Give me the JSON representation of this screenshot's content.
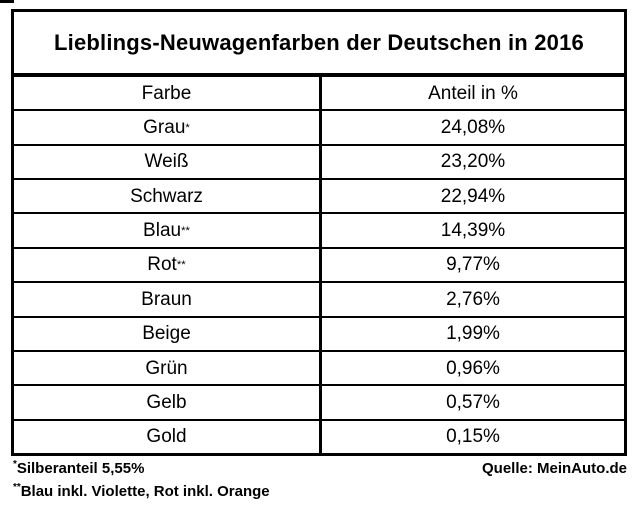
{
  "table": {
    "title": "Lieblings-Neuwagenfarben der Deutschen in 2016",
    "columns": [
      "Farbe",
      "Anteil in %"
    ],
    "rows": [
      {
        "color": "Grau",
        "marker": "*",
        "share": "24,08%"
      },
      {
        "color": "Weiß",
        "marker": "",
        "share": "23,20%"
      },
      {
        "color": "Schwarz",
        "marker": "",
        "share": "22,94%"
      },
      {
        "color": "Blau",
        "marker": "**",
        "share": "14,39%"
      },
      {
        "color": "Rot",
        "marker": "**",
        "share": "9,77%"
      },
      {
        "color": "Braun",
        "marker": "",
        "share": "2,76%"
      },
      {
        "color": "Beige",
        "marker": "",
        "share": "1,99%"
      },
      {
        "color": "Grün",
        "marker": "",
        "share": "0,96%"
      },
      {
        "color": "Gelb",
        "marker": "",
        "share": "0,57%"
      },
      {
        "color": "Gold",
        "marker": "",
        "share": "0,15%"
      }
    ]
  },
  "footnotes": {
    "note1_marker": "*",
    "note1_text": "Silberanteil 5,55%",
    "note2_marker": "**",
    "note2_text": "Blau inkl. Violette, Rot inkl. Orange",
    "source": "Quelle: MeinAuto.de"
  },
  "colors": {
    "border": "#000000",
    "text": "#000000",
    "background": "#ffffff"
  },
  "chart_data": {
    "type": "table",
    "title": "Lieblings-Neuwagenfarben der Deutschen in 2016",
    "columns": [
      "Farbe",
      "Anteil in %"
    ],
    "categories": [
      "Grau",
      "Weiß",
      "Schwarz",
      "Blau",
      "Rot",
      "Braun",
      "Beige",
      "Grün",
      "Gelb",
      "Gold"
    ],
    "values": [
      24.08,
      23.2,
      22.94,
      14.39,
      9.77,
      2.76,
      1.99,
      0.96,
      0.57,
      0.15
    ],
    "unit": "%",
    "annotations": [
      "*Silberanteil 5,55%",
      "**Blau inkl. Violette, Rot inkl. Orange",
      "Quelle: MeinAuto.de"
    ]
  }
}
